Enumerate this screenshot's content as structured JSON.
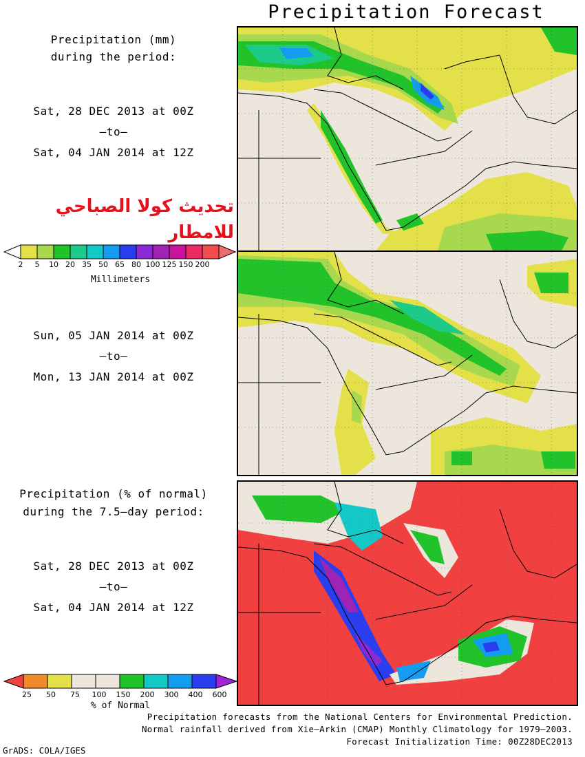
{
  "title": "Precipitation Forecast",
  "section1": {
    "heading_line1": "Precipitation (mm)",
    "heading_line2": "during the period:"
  },
  "period1": {
    "from": "Sat, 28 DEC 2013 at 00Z",
    "to": "—to—",
    "until": "Sat, 04 JAN 2014 at 12Z"
  },
  "period2": {
    "from": "Sun, 05 JAN 2014 at 00Z",
    "to": "—to—",
    "until": "Mon, 13 JAN 2014 at 00Z"
  },
  "section2": {
    "heading_line1": "Precipitation (% of normal)",
    "heading_line2": "during the 7.5—day period:"
  },
  "period3": {
    "from": "Sat, 28 DEC 2013 at 00Z",
    "to": "—to—",
    "until": "Sat, 04 JAN 2014 at 12Z"
  },
  "watermark": {
    "line1": "تحديث كولا الصباحي",
    "line2": "للامطار"
  },
  "colorbar_mm": {
    "unit": "Millimeters",
    "ticks": [
      "2",
      "5",
      "10",
      "20",
      "35",
      "50",
      "65",
      "80",
      "100",
      "125",
      "150",
      "200"
    ],
    "colors": [
      "#e4e04a",
      "#a8d84e",
      "#22c22a",
      "#1ccb8a",
      "#14c8c8",
      "#149cf0",
      "#2a3ef0",
      "#8c2ad8",
      "#a024b4",
      "#c8149c",
      "#ec2a64",
      "#f04e4e"
    ],
    "end_low_color": "#ffffff",
    "end_high_color": "#f06c6c"
  },
  "colorbar_pct": {
    "unit": "% of Normal",
    "ticks": [
      "25",
      "50",
      "75",
      "100",
      "150",
      "200",
      "300",
      "400",
      "600"
    ],
    "colors": [
      "#f08a28",
      "#e4e04a",
      "#ede6dc",
      "#ede6dc",
      "#22c22a",
      "#14c8c8",
      "#149cf0",
      "#2a3ef0"
    ],
    "end_low_color": "#f04040",
    "end_high_color": "#a024d8"
  },
  "footer": {
    "line1": "Precipitation forecasts from the National Centers for Environmental Prediction.",
    "line2": "Normal rainfall derived from Xie—Arkin (CMAP) Monthly Climatology for 1979—2003.",
    "line3": "Forecast Initialization Time: 00Z28DEC2013",
    "credit": "GrADS: COLA/IGES"
  },
  "colors": {
    "land": "#ede6dc",
    "below_normal": "#f04040"
  }
}
